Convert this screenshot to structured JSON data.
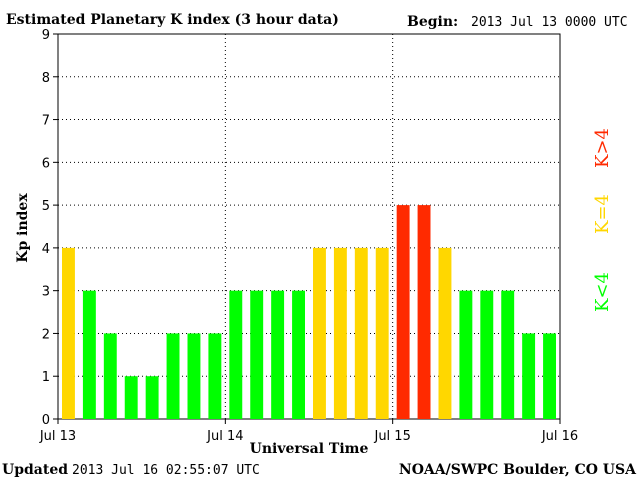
{
  "header": {
    "title": "Estimated Planetary K index (3 hour data)",
    "begin_label": "Begin:",
    "begin_value": "2013 Jul 13 0000 UTC"
  },
  "footer": {
    "updated_label": "Updated",
    "updated_value": "2013 Jul 16 02:55:07 UTC",
    "credit": "NOAA/SWPC Boulder, CO USA"
  },
  "colors": {
    "low": "#00ff00",
    "mid": "#ffd700",
    "high": "#ff2a00"
  },
  "legend": {
    "high": "K>4",
    "mid": "K=4",
    "low": "K<4"
  },
  "chart_data": {
    "type": "bar",
    "xlabel": "Universal Time",
    "ylabel": "Kp index",
    "ylim": [
      0,
      9
    ],
    "yticks": [
      "0",
      "1",
      "2",
      "3",
      "4",
      "5",
      "6",
      "7",
      "8",
      "9"
    ],
    "xticks": [
      "Jul 13",
      "Jul 14",
      "Jul 15",
      "Jul 16"
    ],
    "grid": "dotted, at each y tick and at day boundaries",
    "bars_per_day": 8,
    "values": [
      4,
      3,
      2,
      1,
      1,
      2,
      2,
      2,
      3,
      3,
      3,
      3,
      4,
      4,
      4,
      4,
      5,
      5,
      4,
      3,
      3,
      3,
      2,
      2
    ]
  }
}
